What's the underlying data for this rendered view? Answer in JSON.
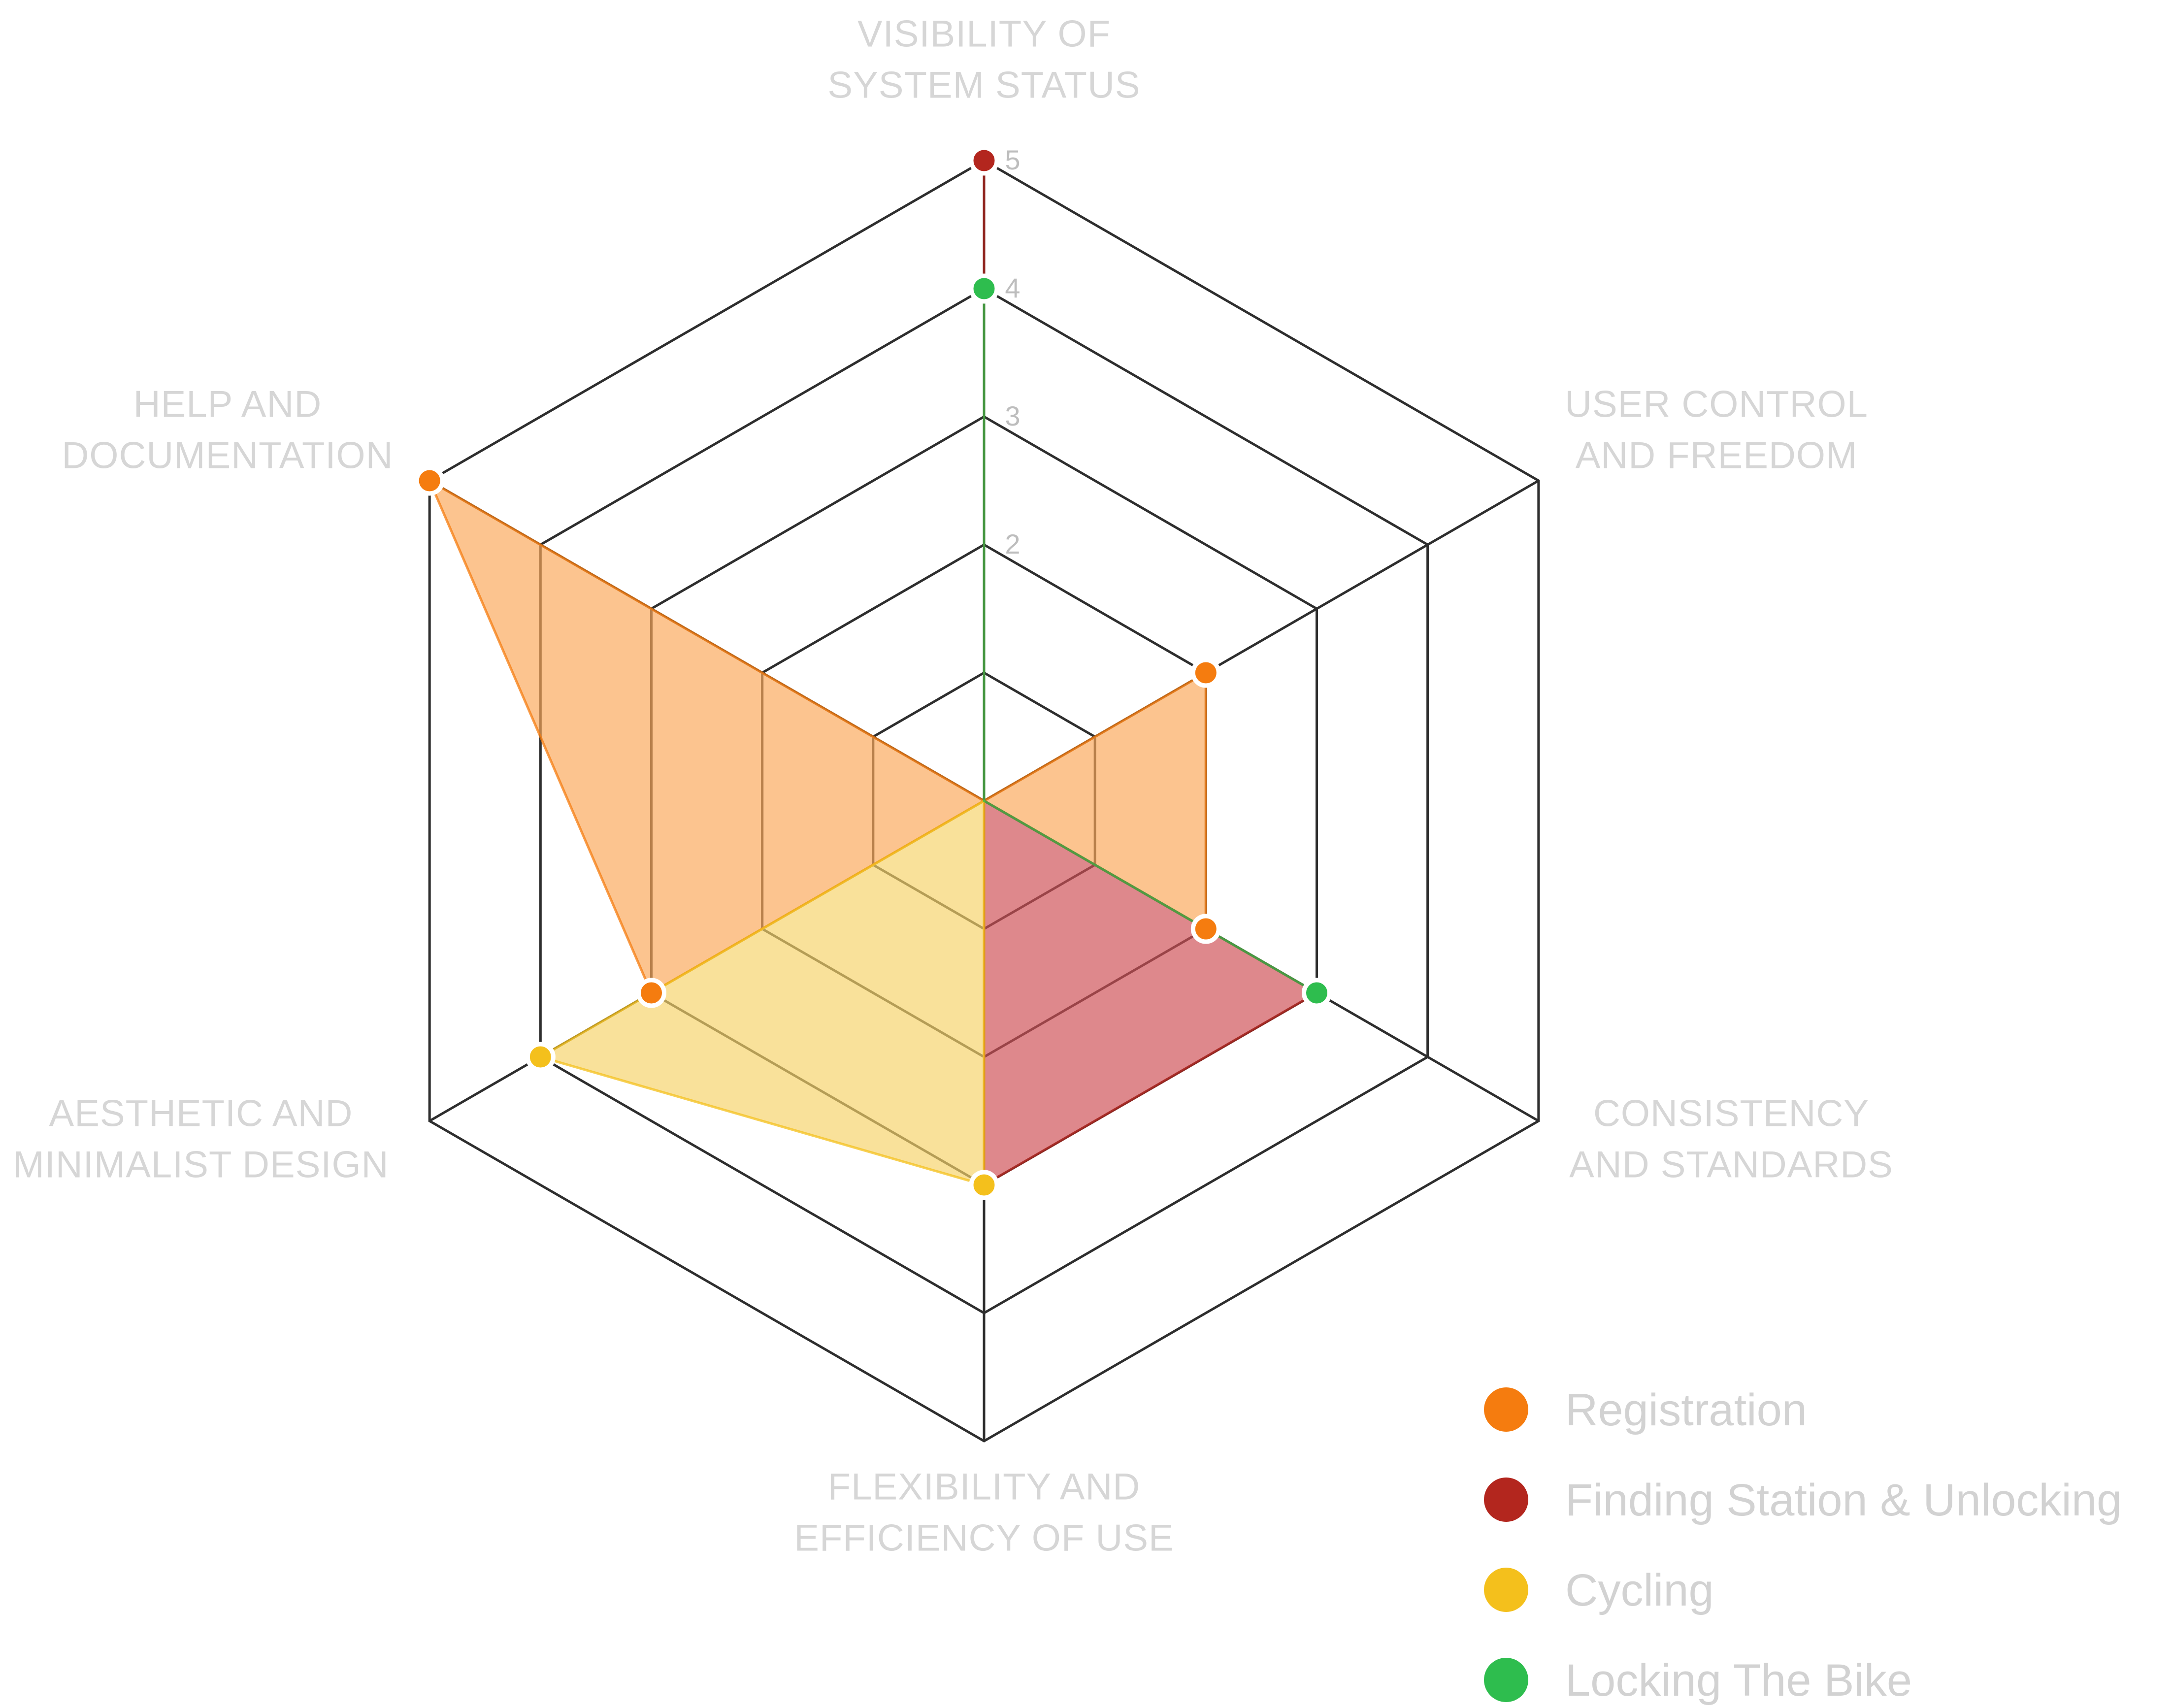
{
  "chart_data": {
    "type": "radar",
    "title": "",
    "range": [
      0,
      5
    ],
    "ticks": [
      "2",
      "3",
      "4",
      "5"
    ],
    "axes": [
      {
        "lines": [
          "VISIBILITY OF",
          "SYSTEM STATUS"
        ]
      },
      {
        "lines": [
          "USER CONTROL",
          "AND FREEDOM"
        ]
      },
      {
        "lines": [
          "CONSISTENCY",
          "AND STANDARDS"
        ]
      },
      {
        "lines": [
          "FLEXIBILITY AND",
          "EFFICIENCY OF USE"
        ]
      },
      {
        "lines": [
          "AESTHETIC AND",
          "MINIMALIST DESIGN"
        ]
      },
      {
        "lines": [
          "HELP AND",
          "DOCUMENTATION"
        ]
      }
    ],
    "series": [
      {
        "name": "Registration",
        "values": [
          0,
          2,
          2,
          0,
          3,
          5
        ],
        "color": "#f57c0f",
        "fill": "#fba85a"
      },
      {
        "name": "Finding Station & Unlocking",
        "values": [
          5,
          0,
          3,
          3,
          0,
          0
        ],
        "color": "#b3261e",
        "fill": "#cf4f56"
      },
      {
        "name": "Cycling",
        "values": [
          0,
          0,
          0,
          3,
          4,
          0
        ],
        "color": "#f4c01c",
        "fill": "#f6d36a"
      },
      {
        "name": "Locking The Bike",
        "values": [
          4,
          0,
          3,
          0,
          0,
          0
        ],
        "color": "#2ebd4e",
        "fill": "#3fbf55"
      }
    ],
    "legend_position": "bottom-right"
  }
}
